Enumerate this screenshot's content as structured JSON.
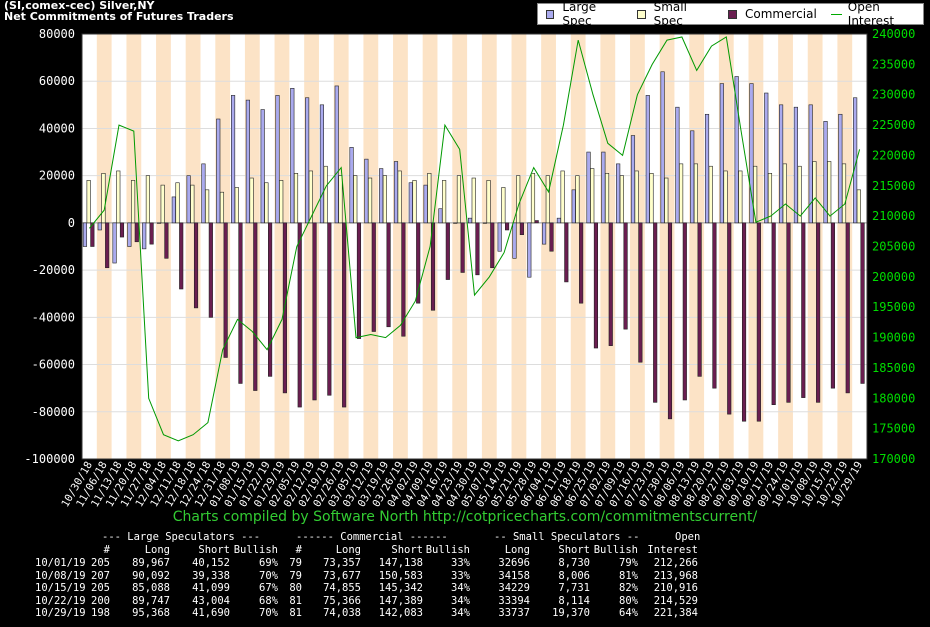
{
  "header": {
    "line1": "(SI,comex-cec) Silver,NY",
    "line2": "Net Commitments of Futures Traders"
  },
  "legend": {
    "large_spec": "Large Spec",
    "small_spec": "Small Spec",
    "commercial": "Commercial",
    "open_interest": "Open Interest"
  },
  "colors": {
    "large_spec": "#aaaaee",
    "small_spec": "#ffffcc",
    "commercial": "#6a1e50",
    "open_interest": "#009900",
    "band": "#fce3c6"
  },
  "credit": "Charts compiled by Software North  http://cotpricecharts.com/commitmentscurrent/",
  "chart_data": {
    "type": "bar",
    "x": [
      "10/30/18",
      "11/06/18",
      "11/13/18",
      "11/20/18",
      "11/27/18",
      "12/04/18",
      "12/11/18",
      "12/18/18",
      "12/24/18",
      "12/31/18",
      "01/08/19",
      "01/15/19",
      "01/22/19",
      "01/29/19",
      "02/05/19",
      "02/12/19",
      "02/19/19",
      "02/26/19",
      "03/05/19",
      "03/12/19",
      "03/19/19",
      "03/26/19",
      "04/02/19",
      "04/09/19",
      "04/16/19",
      "04/23/19",
      "04/30/19",
      "05/07/19",
      "05/14/19",
      "05/21/19",
      "05/28/19",
      "06/04/19",
      "06/11/19",
      "06/18/19",
      "06/25/19",
      "07/02/19",
      "07/09/19",
      "07/16/19",
      "07/23/19",
      "07/30/19",
      "08/06/19",
      "08/13/19",
      "08/20/19",
      "08/27/19",
      "09/03/19",
      "09/10/19",
      "09/17/19",
      "09/24/19",
      "10/01/19",
      "10/08/19",
      "10/15/19",
      "10/22/19",
      "10/29/19"
    ],
    "x_tick_labels": [
      "10/30/18",
      "11/06/18",
      "11/13/18",
      "11/20/18",
      "11/27/18",
      "12/04/18",
      "12/11/18",
      "12/18/18",
      "12/24/18",
      "12/31/18",
      "01/08/19",
      "01/15/19",
      "01/22/19",
      "01/29/19",
      "02/05/19",
      "02/12/19",
      "02/19/19",
      "02/26/19",
      "03/05/19",
      "03/12/19",
      "03/19/19",
      "03/26/19",
      "04/02/19",
      "04/09/19",
      "04/16/19",
      "04/23/19",
      "04/30/19",
      "05/07/19",
      "05/14/19",
      "05/21/19",
      "05/28/19",
      "06/04/19",
      "06/11/19",
      "06/18/19",
      "06/25/19",
      "07/02/19",
      "07/09/19",
      "07/16/19",
      "07/23/19",
      "07/30/19",
      "08/06/19",
      "08/13/19",
      "08/20/19",
      "08/27/19",
      "09/03/19",
      "09/10/19",
      "09/17/19",
      "09/24/19",
      "10/01/19",
      "10/08/19",
      "10/15/19",
      "10/22/19",
      "10/29/19"
    ],
    "ylim": [
      -100000,
      80000
    ],
    "y_ticks": [
      80000,
      60000,
      40000,
      20000,
      0,
      -20000,
      -40000,
      -60000,
      -80000,
      -100000
    ],
    "y2lim": [
      170000,
      240000
    ],
    "y2_ticks": [
      240000,
      235000,
      230000,
      225000,
      220000,
      215000,
      210000,
      205000,
      200000,
      195000,
      190000,
      185000,
      180000,
      175000,
      170000
    ],
    "series": [
      {
        "name": "Large Spec",
        "values": [
          -10000,
          -3000,
          -17000,
          -10000,
          -11000,
          0,
          11000,
          20000,
          25000,
          44000,
          54000,
          52000,
          48000,
          54000,
          57000,
          53000,
          50000,
          58000,
          32000,
          27000,
          23000,
          26000,
          17000,
          16000,
          6000,
          0,
          2000,
          0,
          -12000,
          -15000,
          -23000,
          -9000,
          2000,
          14000,
          30000,
          30000,
          25000,
          37000,
          54000,
          64000,
          49000,
          39000,
          46000,
          59000,
          62000,
          59000,
          55000,
          50000,
          49000,
          50000,
          43000,
          46000,
          53000
        ]
      },
      {
        "name": "Small Spec",
        "values": [
          18000,
          21000,
          22000,
          18000,
          20000,
          16000,
          17000,
          16000,
          14000,
          13000,
          15000,
          19000,
          17000,
          18000,
          21000,
          22000,
          24000,
          20000,
          20000,
          19000,
          20000,
          22000,
          18000,
          21000,
          18000,
          20000,
          19000,
          18000,
          15000,
          20000,
          21000,
          20000,
          22000,
          20000,
          23000,
          21000,
          20000,
          22000,
          21000,
          19000,
          25000,
          25000,
          24000,
          22000,
          22000,
          24000,
          21000,
          25000,
          24000,
          26000,
          26000,
          25000,
          14000
        ]
      },
      {
        "name": "Commercial",
        "values": [
          -10000,
          -19000,
          -6000,
          -8000,
          -9000,
          -15000,
          -28000,
          -36000,
          -40000,
          -57000,
          -68000,
          -71000,
          -65000,
          -72000,
          -78000,
          -75000,
          -73000,
          -78000,
          -49000,
          -46000,
          -44000,
          -48000,
          -34000,
          -37000,
          -24000,
          -21000,
          -22000,
          -19000,
          -3000,
          -5000,
          1000,
          -12000,
          -25000,
          -34000,
          -53000,
          -52000,
          -45000,
          -59000,
          -76000,
          -83000,
          -75000,
          -65000,
          -70000,
          -81000,
          -84000,
          -84000,
          -77000,
          -76000,
          -74000,
          -76000,
          -70000,
          -72000,
          -68000
        ]
      },
      {
        "name": "Open Interest",
        "axis": "right",
        "values": [
          208000,
          211000,
          225000,
          224000,
          180000,
          174000,
          173000,
          174000,
          176000,
          188000,
          193000,
          191000,
          188000,
          193000,
          205000,
          210000,
          215000,
          218000,
          190000,
          190500,
          190000,
          192000,
          196000,
          205000,
          225000,
          221000,
          197000,
          200000,
          204000,
          212000,
          218000,
          214000,
          225000,
          239000,
          230000,
          222000,
          220000,
          230000,
          235000,
          239000,
          239500,
          234000,
          238000,
          239500,
          224000,
          209000,
          210000,
          212000,
          210000,
          213000,
          210000,
          212000,
          221000
        ]
      }
    ],
    "table": {
      "group_headers": [
        "--- Large Speculators ---",
        "------ Commercial ------",
        "-- Small Speculators --",
        "Open"
      ],
      "columns": [
        "#",
        "Long",
        "Short",
        "Bullish",
        "#",
        "Long",
        "Short",
        "Bullish",
        "Long",
        "Short",
        "Bullish",
        "Interest"
      ],
      "rows": [
        [
          "10/01/19",
          "205",
          "89,967",
          "40,152",
          "69%",
          "79",
          "73,357",
          "147,138",
          "33%",
          "32696",
          "8,730",
          "79%",
          "212,266"
        ],
        [
          "10/08/19",
          "207",
          "90,092",
          "39,338",
          "70%",
          "79",
          "73,677",
          "150,583",
          "33%",
          "34158",
          "8,006",
          "81%",
          "213,968"
        ],
        [
          "10/15/19",
          "205",
          "85,088",
          "41,099",
          "67%",
          "80",
          "74,855",
          "145,342",
          "34%",
          "34229",
          "7,731",
          "82%",
          "210,916"
        ],
        [
          "10/22/19",
          "200",
          "89,747",
          "43,004",
          "68%",
          "81",
          "75,366",
          "147,389",
          "34%",
          "33394",
          "8,114",
          "80%",
          "214,529"
        ],
        [
          "10/29/19",
          "198",
          "95,368",
          "41,690",
          "70%",
          "81",
          "74,038",
          "142,083",
          "34%",
          "33737",
          "19,370",
          "64%",
          "221,384"
        ]
      ]
    }
  }
}
